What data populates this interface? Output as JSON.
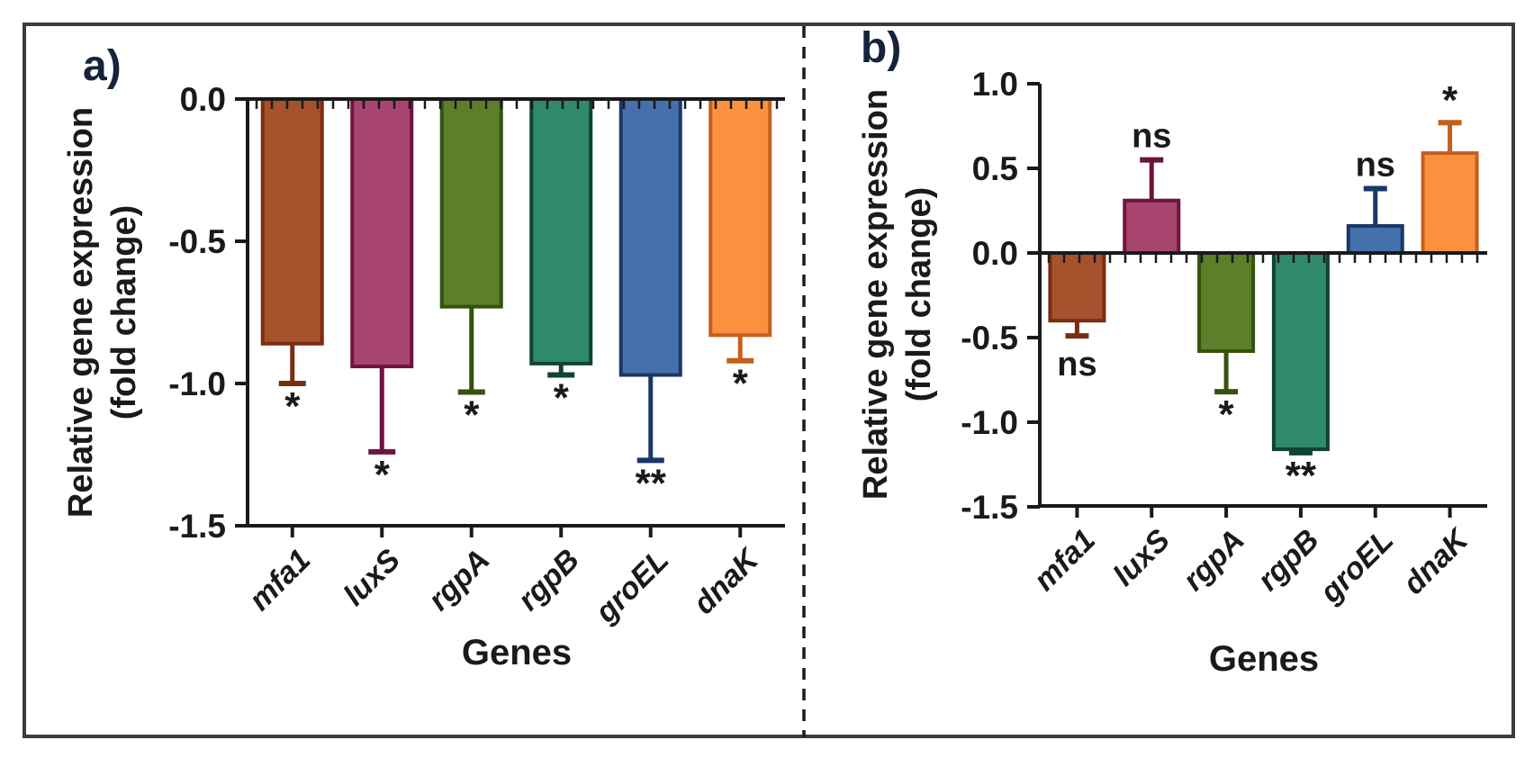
{
  "figure": {
    "panel_a_label": "a)",
    "panel_b_label": "b)"
  },
  "chart_data": [
    {
      "panel": "a)",
      "type": "bar",
      "categories": [
        "mfa1",
        "luxS",
        "rgpA",
        "rgpB",
        "groEL",
        "dnaK"
      ],
      "values": [
        -0.86,
        -0.94,
        -0.73,
        -0.93,
        -0.97,
        -0.83
      ],
      "errors": [
        0.14,
        0.3,
        0.3,
        0.04,
        0.3,
        0.09
      ],
      "error_direction": "away-from-zero",
      "significance": [
        "*",
        "*",
        "*",
        "*",
        "**",
        "*"
      ],
      "xlabel": "Genes",
      "ylabel": "Relative gene expression (fold change)",
      "ylabel_lines": [
        "Relative gene expression",
        "(fold change)"
      ],
      "ylim": [
        -1.5,
        0.0
      ],
      "yticks": [
        0.0,
        -0.5,
        -1.0,
        -1.5
      ],
      "ytick_labels": [
        "0.0",
        "-0.5",
        "-1.0",
        "-1.5"
      ],
      "grid": false,
      "legend": false,
      "bar_fill_colors": [
        "#A5522D",
        "#A8456E",
        "#5C7F29",
        "#2E8A69",
        "#4470AB",
        "#FB913F"
      ],
      "bar_edge_colors": [
        "#7A2D10",
        "#6E143E",
        "#35520E",
        "#104231",
        "#1B3766",
        "#C2601F"
      ]
    },
    {
      "panel": "b)",
      "type": "bar",
      "categories": [
        "mfa1",
        "luxS",
        "rgpA",
        "rgpB",
        "groEL",
        "dnaK"
      ],
      "values": [
        -0.4,
        0.31,
        -0.58,
        -1.16,
        0.16,
        0.59
      ],
      "errors": [
        0.09,
        0.24,
        0.24,
        0.02,
        0.22,
        0.18
      ],
      "error_direction": "away-from-zero",
      "significance": [
        "ns",
        "ns",
        "*",
        "**",
        "ns",
        "*"
      ],
      "xlabel": "Genes",
      "ylabel": "Relative gene expression (fold change)",
      "ylabel_lines": [
        "Relative gene expression",
        "(fold change)"
      ],
      "ylim": [
        -1.5,
        1.0
      ],
      "yticks": [
        1.0,
        0.5,
        0.0,
        -0.5,
        -1.0,
        -1.5
      ],
      "ytick_labels": [
        "1.0",
        "0.5",
        "0.0",
        "-0.5",
        "-1.0",
        "-1.5"
      ],
      "grid": false,
      "legend": false,
      "bar_fill_colors": [
        "#A5522D",
        "#A8456E",
        "#5C7F29",
        "#2E8A69",
        "#4470AB",
        "#FB913F"
      ],
      "bar_edge_colors": [
        "#7A2D10",
        "#6E143E",
        "#35520E",
        "#104231",
        "#1B3766",
        "#C2601F"
      ]
    }
  ],
  "colors": {
    "axis": "#1a1a1a",
    "border": "#3d3d3d",
    "divider": "#1a1a1a",
    "panel_letter": "#16233b"
  }
}
